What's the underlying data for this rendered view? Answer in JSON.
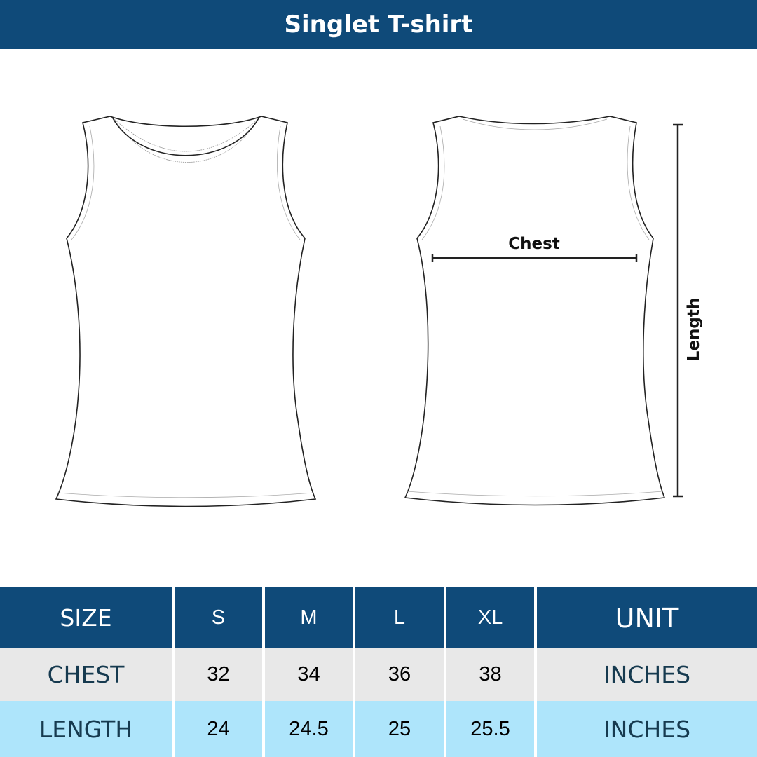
{
  "title": "Singlet T-shirt",
  "diagram": {
    "chest_label": "Chest",
    "length_label": "Length"
  },
  "table": {
    "headers": [
      "SIZE",
      "S",
      "M",
      "L",
      "XL",
      "UNIT"
    ],
    "rows": [
      {
        "label": "CHEST",
        "values": [
          "32",
          "34",
          "36",
          "38"
        ],
        "unit": "INCHES"
      },
      {
        "label": "LENGTH",
        "values": [
          "24",
          "24.5",
          "25",
          "25.5"
        ],
        "unit": "INCHES"
      }
    ]
  },
  "colors": {
    "header": "#0f4a79",
    "row_chest": "#e8e8e8",
    "row_length": "#aee5fb"
  }
}
